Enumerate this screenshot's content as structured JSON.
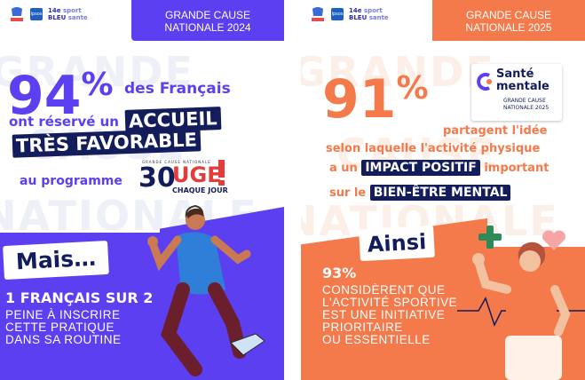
{
  "left": {
    "band": {
      "line1": "GRANDE CAUSE",
      "line2": "NATIONALE 2024"
    },
    "logos": {
      "ipsos": "Ipsos",
      "sport1": "14e",
      "sport2": "BLEU",
      "sport3": "sport",
      "sport4": "sante"
    },
    "big_number": "94",
    "percent": "%",
    "line_a": "des Français",
    "line_b_pre": "ont réservé un",
    "line_b_hl": "ACCUEIL",
    "line_c_hl": "TRÈS FAVORABLE",
    "line_d": "au programme",
    "badge": {
      "top": "GRANDE CAUSE NATIONALE",
      "num": "30",
      "word": "UGE",
      "bottom": "CHAQUE JOUR"
    },
    "mais": "Mais…",
    "stat_title": "1 FRANÇAIS SUR 2",
    "stat_lines": [
      "PEINE À INSCRIRE",
      "CETTE PRATIQUE",
      "DANS SA ROUTINE"
    ],
    "ghost_words": [
      "GRANDE",
      "CAUSE",
      "NATIONALE"
    ],
    "colors": {
      "purple": "#5b3ff0",
      "navy": "#141d5c",
      "red": "#e43b3b"
    }
  },
  "right": {
    "band": {
      "line1": "GRANDE CAUSE",
      "line2": "NATIONALE 2025"
    },
    "logos": {
      "ipsos": "Ipsos",
      "sport1": "14e",
      "sport2": "BLEU",
      "sport3": "sport",
      "sport4": "sante"
    },
    "big_number": "91",
    "percent": "%",
    "line_a": "partagent l'idée",
    "line_b": "selon laquelle l'activité physique",
    "line_c_pre": "a un",
    "line_c_hl": "IMPACT POSITIF",
    "line_c_post": "important",
    "line_d_pre": "sur le",
    "line_d_hl": "BIEN-ÊTRE MENTAL",
    "sm_badge": {
      "title1": "Santé",
      "title2": "mentale",
      "sub1": "GRANDE CAUSE",
      "sub2": "NATIONALE 2025"
    },
    "ainsi": "Ainsi",
    "stat_number": "93%",
    "stat_lines": [
      "CONSIDÈRENT QUE",
      "L'ACTIVITÉ SPORTIVE",
      "EST UNE INITIATIVE",
      "PRIORITAIRE",
      "OU ESSENTIELLE"
    ],
    "ghost_words": [
      "GRANDE",
      "CAUSE",
      "NATIONALE"
    ],
    "colors": {
      "orange": "#f4794b",
      "navy": "#141d5c",
      "green": "#2e8b57",
      "pink": "#f7a4a4"
    }
  }
}
